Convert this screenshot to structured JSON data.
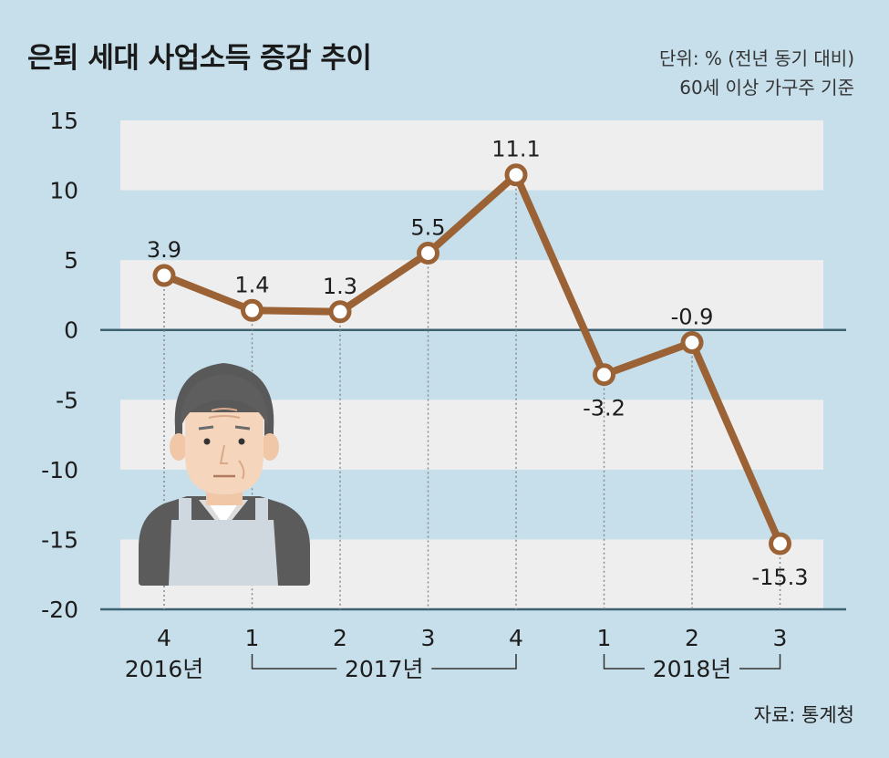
{
  "header": {
    "title": "은퇴 세대 사업소득 증감 추이",
    "unit": "단위: % (전년 동기 대비)",
    "basis": "60세 이상 가구주 기준"
  },
  "footer": {
    "source": "자료: 통계청"
  },
  "colors": {
    "line": "#9b6236",
    "band": "#eeeeee",
    "background": "#c6dfeb",
    "axis": "#3c6170"
  },
  "chart_data": {
    "type": "line",
    "categories": [
      "4",
      "1",
      "2",
      "3",
      "4",
      "1",
      "2",
      "3"
    ],
    "values": [
      3.9,
      1.4,
      1.3,
      5.5,
      11.1,
      -3.2,
      -0.9,
      -15.3
    ],
    "value_labels": [
      "3.9",
      "1.4",
      "1.3",
      "5.5",
      "11.1",
      "-3.2",
      "-0.9",
      "-15.3"
    ],
    "ylim": [
      -20,
      15
    ],
    "yticks": [
      15,
      10,
      5,
      0,
      -5,
      -10,
      -15,
      -20
    ],
    "year_groups": [
      {
        "label": "2016년",
        "start": 0,
        "end": 0
      },
      {
        "label": "2017년",
        "start": 1,
        "end": 4
      },
      {
        "label": "2018년",
        "start": 5,
        "end": 7
      }
    ],
    "grid": "alternating-bands",
    "illustration": "elderly-man-icon"
  }
}
